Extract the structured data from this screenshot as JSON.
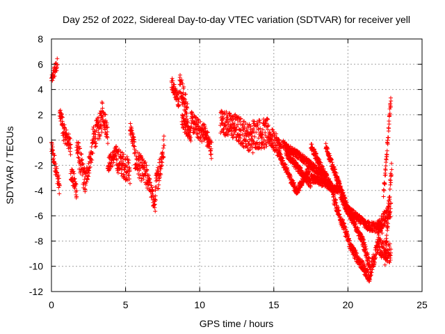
{
  "chart_data": {
    "type": "scatter",
    "title": "Day 252 of 2022, Sidereal Day-to-day VTEC variation (SDTVAR) for receiver yell",
    "xlabel": "GPS time / hours",
    "ylabel": "SDTVAR / TECUs",
    "xlim": [
      0,
      25
    ],
    "ylim": [
      -12,
      8
    ],
    "xticks": [
      0,
      5,
      10,
      15,
      20,
      25
    ],
    "yticks": [
      -12,
      -10,
      -8,
      -6,
      -4,
      -2,
      0,
      2,
      4,
      6,
      8
    ],
    "grid": true,
    "marker": "+",
    "color": "#ff0000",
    "series": [
      {
        "name": "SDTVAR",
        "segments": [
          {
            "t0": 0.0,
            "t1": 0.12,
            "v0": 4.8,
            "v1": 5.0,
            "spread": 0.3
          },
          {
            "t0": 0.12,
            "t1": 0.4,
            "v0": 5.2,
            "v1": 6.0,
            "spread": 0.5
          },
          {
            "t0": 0.0,
            "t1": 0.55,
            "v0": -0.5,
            "v1": -3.8,
            "spread": 0.6
          },
          {
            "t0": 0.55,
            "t1": 0.75,
            "v0": 2.0,
            "v1": 1.5,
            "spread": 0.5
          },
          {
            "t0": 0.75,
            "t1": 1.3,
            "v0": 0.8,
            "v1": -0.5,
            "spread": 0.7
          },
          {
            "t0": 1.3,
            "t1": 1.7,
            "v0": -2.5,
            "v1": -4.0,
            "spread": 0.7
          },
          {
            "t0": 1.7,
            "t1": 2.3,
            "v0": -0.5,
            "v1": -3.5,
            "spread": 1.0
          },
          {
            "t0": 2.3,
            "t1": 2.8,
            "v0": -3.2,
            "v1": -0.5,
            "spread": 0.8
          },
          {
            "t0": 2.8,
            "t1": 3.4,
            "v0": 0.0,
            "v1": 1.5,
            "spread": 1.0
          },
          {
            "t0": 3.4,
            "t1": 3.8,
            "v0": 2.5,
            "v1": 0.5,
            "spread": 0.8
          },
          {
            "t0": 3.8,
            "t1": 4.4,
            "v0": -2.0,
            "v1": -1.0,
            "spread": 0.6
          },
          {
            "t0": 4.4,
            "t1": 5.3,
            "v0": -1.5,
            "v1": -2.5,
            "spread": 1.0
          },
          {
            "t0": 5.3,
            "t1": 5.6,
            "v0": 1.0,
            "v1": -0.5,
            "spread": 0.6
          },
          {
            "t0": 5.6,
            "t1": 6.5,
            "v0": -1.5,
            "v1": -3.0,
            "spread": 1.0
          },
          {
            "t0": 6.5,
            "t1": 7.0,
            "v0": -3.0,
            "v1": -5.3,
            "spread": 0.6
          },
          {
            "t0": 7.0,
            "t1": 7.6,
            "v0": -4.0,
            "v1": -0.5,
            "spread": 1.0
          },
          {
            "t0": 8.1,
            "t1": 8.6,
            "v0": 4.6,
            "v1": 3.0,
            "spread": 0.5
          },
          {
            "t0": 8.6,
            "t1": 9.2,
            "v0": 4.8,
            "v1": 2.0,
            "spread": 1.0
          },
          {
            "t0": 8.8,
            "t1": 9.4,
            "v0": 1.5,
            "v1": 0.5,
            "spread": 0.6
          },
          {
            "t0": 9.4,
            "t1": 10.2,
            "v0": 1.5,
            "v1": 0.5,
            "spread": 0.8
          },
          {
            "t0": 10.2,
            "t1": 10.8,
            "v0": 1.0,
            "v1": -0.8,
            "spread": 0.7
          },
          {
            "t0": 11.4,
            "t1": 12.4,
            "v0": 1.5,
            "v1": 1.0,
            "spread": 1.0
          },
          {
            "t0": 12.4,
            "t1": 13.6,
            "v0": 1.0,
            "v1": 0.0,
            "spread": 1.1
          },
          {
            "t0": 13.6,
            "t1": 14.6,
            "v0": 0.5,
            "v1": 0.5,
            "spread": 1.2
          },
          {
            "t0": 14.6,
            "t1": 15.5,
            "v0": 0.5,
            "v1": -0.8,
            "spread": 0.8
          },
          {
            "t0": 15.3,
            "t1": 16.5,
            "v0": -1.0,
            "v1": -4.0,
            "spread": 0.3
          },
          {
            "t0": 16.5,
            "t1": 17.5,
            "v0": -4.2,
            "v1": -2.0,
            "spread": 0.3
          },
          {
            "t0": 17.5,
            "t1": 19.0,
            "v0": -0.5,
            "v1": -4.0,
            "spread": 0.3
          },
          {
            "t0": 19.0,
            "t1": 20.2,
            "v0": -4.5,
            "v1": -8.5,
            "spread": 0.4
          },
          {
            "t0": 20.2,
            "t1": 21.5,
            "v0": -8.5,
            "v1": -11.0,
            "spread": 0.4
          },
          {
            "t0": 15.6,
            "t1": 17.0,
            "v0": -0.3,
            "v1": -1.5,
            "spread": 0.3
          },
          {
            "t0": 17.0,
            "t1": 18.5,
            "v0": -1.5,
            "v1": -3.0,
            "spread": 0.3
          },
          {
            "t0": 18.5,
            "t1": 20.0,
            "v0": -0.5,
            "v1": -5.5,
            "spread": 0.3
          },
          {
            "t0": 20.0,
            "t1": 21.3,
            "v0": -5.5,
            "v1": -6.8,
            "spread": 0.3
          },
          {
            "t0": 21.3,
            "t1": 22.3,
            "v0": -6.8,
            "v1": -7.0,
            "spread": 0.4
          },
          {
            "t0": 15.8,
            "t1": 17.5,
            "v0": -1.0,
            "v1": -3.5,
            "spread": 0.3
          },
          {
            "t0": 17.5,
            "t1": 19.5,
            "v0": -3.0,
            "v1": -4.0,
            "spread": 0.3
          },
          {
            "t0": 19.5,
            "t1": 21.0,
            "v0": -4.5,
            "v1": -8.0,
            "spread": 0.3
          },
          {
            "t0": 21.0,
            "t1": 21.5,
            "v0": -8.0,
            "v1": -10.0,
            "spread": 0.4
          },
          {
            "t0": 21.5,
            "t1": 22.1,
            "v0": -10.5,
            "v1": -8.0,
            "spread": 0.6
          },
          {
            "t0": 22.1,
            "t1": 22.9,
            "v0": -8.5,
            "v1": -9.0,
            "spread": 0.8
          },
          {
            "t0": 22.0,
            "t1": 22.9,
            "v0": -7.0,
            "v1": -5.5,
            "spread": 0.6
          },
          {
            "t0": 22.4,
            "t1": 22.9,
            "v0": -4.5,
            "v1": 3.3,
            "spread": 0.4
          },
          {
            "t0": 22.5,
            "t1": 22.95,
            "v0": -9.5,
            "v1": -2.0,
            "spread": 0.6
          }
        ]
      }
    ]
  }
}
